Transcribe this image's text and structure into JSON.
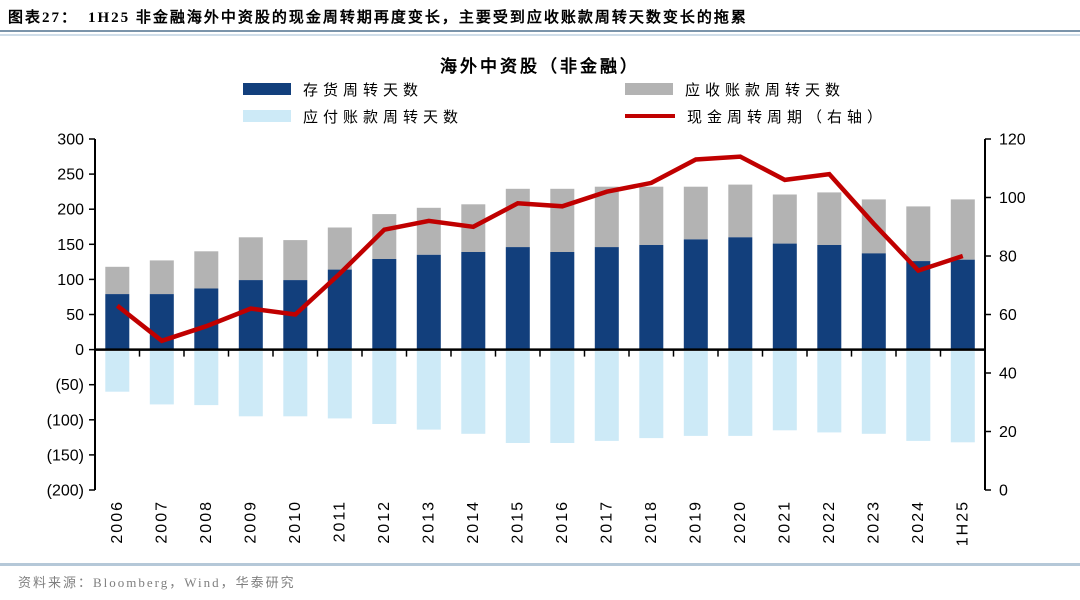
{
  "header": {
    "tag": "图表27：",
    "title": "1H25 非金融海外中资股的现金周转期再度变长，主要受到应收账款周转天数变长的拖累"
  },
  "source": "资料来源：Bloomberg，Wind，华泰研究",
  "chart_data": {
    "type": "bar",
    "combo": "stacked bars (left axis) + line (right axis)",
    "title": "海外中资股（非金融）",
    "categories": [
      "2006",
      "2007",
      "2008",
      "2009",
      "2010",
      "2011",
      "2012",
      "2013",
      "2014",
      "2015",
      "2016",
      "2017",
      "2018",
      "2019",
      "2020",
      "2021",
      "2022",
      "2023",
      "2024",
      "1H25"
    ],
    "series": [
      {
        "name": "存货周转天数",
        "type": "bar",
        "stack": "days",
        "axis": "left",
        "color": "#123f7c",
        "values": [
          79,
          79,
          87,
          99,
          99,
          114,
          129,
          135,
          139,
          146,
          139,
          146,
          149,
          157,
          160,
          151,
          149,
          137,
          126,
          128
        ]
      },
      {
        "name": "应收账款周转天数",
        "type": "bar",
        "stack": "days",
        "axis": "left",
        "color": "#b3b3b3",
        "values": [
          39,
          48,
          53,
          61,
          57,
          60,
          64,
          67,
          68,
          83,
          90,
          86,
          83,
          75,
          75,
          70,
          75,
          77,
          78,
          86
        ]
      },
      {
        "name": "应付账款周转天数",
        "type": "bar",
        "stack": null,
        "axis": "left",
        "color": "#cdeaf7",
        "values": [
          -60,
          -78,
          -79,
          -95,
          -95,
          -98,
          -106,
          -114,
          -120,
          -133,
          -133,
          -130,
          -126,
          -123,
          -123,
          -115,
          -118,
          -120,
          -130,
          -132
        ]
      },
      {
        "name": "现金周转周期（右轴）",
        "type": "line",
        "axis": "right",
        "color": "#c00000",
        "values": [
          63,
          51,
          56,
          62,
          60,
          74,
          89,
          92,
          90,
          98,
          97,
          102,
          105,
          113,
          114,
          106,
          108,
          91,
          75,
          80
        ]
      }
    ],
    "left_axis": {
      "min": -200,
      "max": 300,
      "step": 50,
      "negative_format": "parentheses"
    },
    "right_axis": {
      "min": 0,
      "max": 120,
      "step": 20
    },
    "legend_position": "top",
    "grid": false,
    "axis_color": "#000000"
  }
}
